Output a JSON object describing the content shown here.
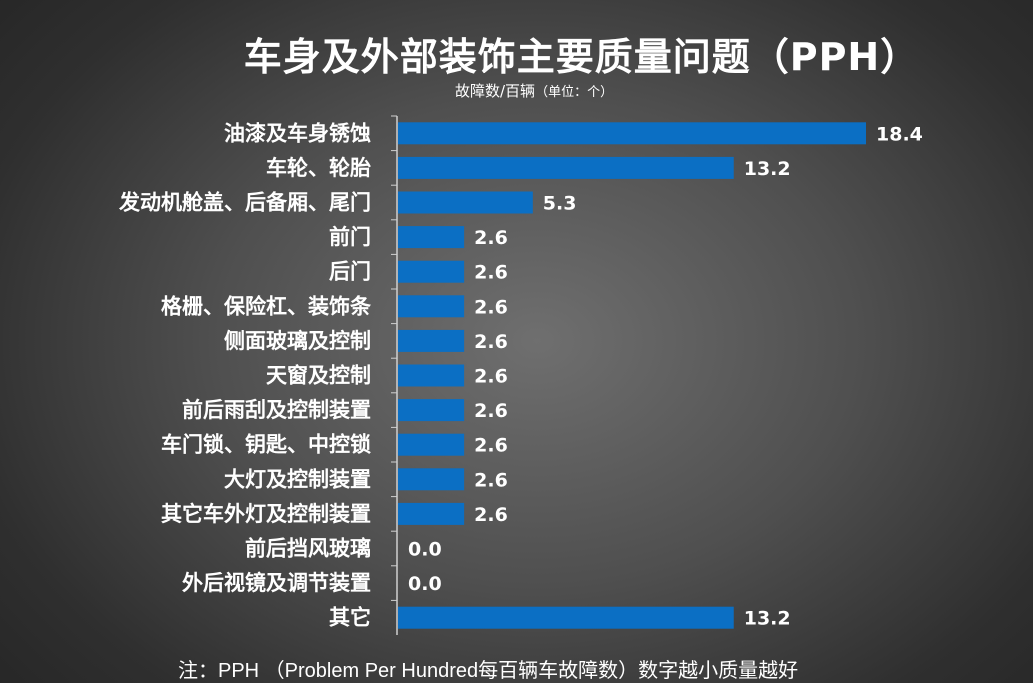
{
  "header": {
    "title": "车身及外部装饰主要质量问题（PPH）",
    "unit_main": "故障数/百辆",
    "unit_sub": "（单位：个）"
  },
  "footer": {
    "note": "注：PPH （Problem Per Hundred每百辆车故障数）数字越小质量越好"
  },
  "colors": {
    "bar": "#0b6fc4",
    "axis": "#d0d0d0"
  },
  "chart_data": {
    "type": "bar",
    "orientation": "horizontal",
    "title": "车身及外部装饰主要质量问题（PPH）",
    "xlabel": "故障数/百辆（单位：个）",
    "ylabel": "",
    "categories": [
      "油漆及车身锈蚀",
      "车轮、轮胎",
      "发动机舱盖、后备厢、尾门",
      "前门",
      "后门",
      "格栅、保险杠、装饰条",
      "侧面玻璃及控制",
      "天窗及控制",
      "前后雨刮及控制装置",
      "车门锁、钥匙、中控锁",
      "大灯及控制装置",
      "其它车外灯及控制装置",
      "前后挡风玻璃",
      "外后视镜及调节装置",
      "其它"
    ],
    "values": [
      18.4,
      13.2,
      5.3,
      2.6,
      2.6,
      2.6,
      2.6,
      2.6,
      2.6,
      2.6,
      2.6,
      2.6,
      0.0,
      0.0,
      13.2
    ],
    "value_labels": [
      "18.4",
      "13.2",
      "5.3",
      "2.6",
      "2.6",
      "2.6",
      "2.6",
      "2.6",
      "2.6",
      "2.6",
      "2.6",
      "2.6",
      "0.0",
      "0.0",
      "13.2"
    ],
    "xlim": [
      0,
      18.4
    ],
    "grid": false,
    "legend": "none"
  }
}
